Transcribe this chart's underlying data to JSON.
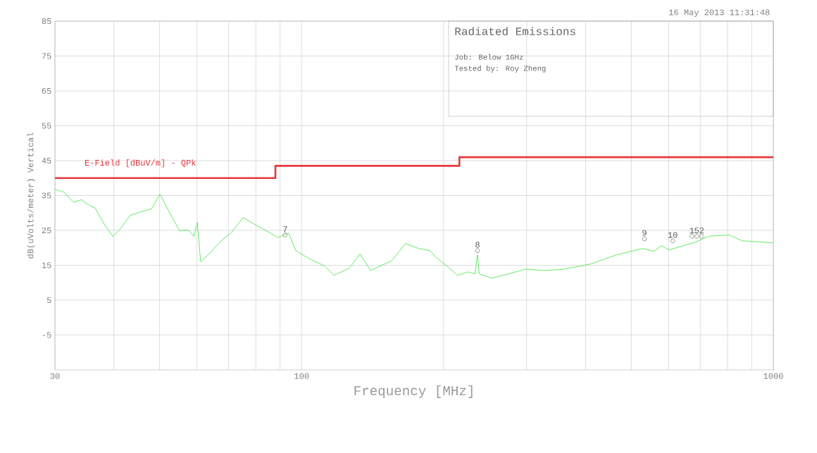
{
  "chart_data": {
    "type": "line",
    "title": "Radiated Emissions",
    "xlabel": "Frequency [MHz]",
    "ylabel": "dB(uVolts/meter) Vertical",
    "log": "x",
    "grid": true,
    "xlim": [
      30,
      1000
    ],
    "ylim": [
      -15,
      85
    ],
    "xticks": [
      30,
      {
        "value": 40,
        "label": null
      },
      {
        "value": 50,
        "label": null
      },
      {
        "value": 60,
        "label": null
      },
      {
        "value": 70,
        "label": null
      },
      {
        "value": 80,
        "label": null
      },
      {
        "value": 90,
        "label": null
      },
      100,
      {
        "value": 200,
        "label": null
      },
      {
        "value": 300,
        "label": null
      },
      {
        "value": 400,
        "label": null
      },
      {
        "value": 500,
        "label": null
      },
      {
        "value": 600,
        "label": null
      },
      {
        "value": 700,
        "label": null
      },
      {
        "value": 800,
        "label": null
      },
      {
        "value": 900,
        "label": null
      },
      1000
    ],
    "yticks": [
      85,
      75,
      65,
      55,
      45,
      35,
      25,
      15,
      5,
      -5
    ],
    "series": [
      {
        "name": "E-Field [dBuV/m] - QPk",
        "type": "step",
        "color": "#e8383d",
        "x": [
          30,
          88,
          216,
          1000
        ],
        "values": [
          40,
          43.5,
          46,
          46
        ]
      },
      {
        "color": "#3ce63c",
        "x": [
          30,
          31.3,
          32.9,
          34.1,
          35.3,
          36.5,
          38.2,
          39.8,
          41.2,
          43.3,
          45.6,
          48.1,
          50.1,
          52.4,
          55.1,
          57.6,
          59.1,
          60.1,
          61.1,
          63.9,
          67.8,
          70.9,
          75.2,
          79.1,
          84.7,
          89.2,
          92.3,
          93.9,
          97.2,
          104,
          112,
          117,
          126,
          133,
          140,
          149,
          155,
          166,
          177,
          187,
          193,
          204,
          214,
          226,
          233,
          236,
          238,
          253,
          274,
          299,
          327,
          362,
          411,
          466,
          529,
          558,
          579,
          601,
          683,
          729,
          805,
          860,
          918,
          997
        ],
        "values": [
          36.8,
          36.0,
          33.0,
          33.8,
          32.4,
          31.4,
          26.7,
          23.3,
          25.3,
          29.3,
          30.3,
          31.2,
          35.4,
          30.3,
          24.9,
          25.1,
          23.3,
          27.3,
          16.0,
          18.5,
          22.2,
          24.3,
          28.7,
          26.9,
          24.7,
          22.9,
          23.9,
          24.2,
          19.2,
          16.8,
          14.8,
          12.1,
          14.1,
          18.2,
          13.5,
          15.2,
          16.2,
          21.2,
          19.8,
          19.2,
          17.2,
          14.6,
          12.1,
          13.1,
          12.5,
          18.0,
          12.5,
          11.3,
          12.5,
          13.9,
          13.5,
          13.9,
          15.4,
          18.0,
          19.8,
          19.0,
          20.6,
          19.4,
          21.6,
          23.3,
          23.7,
          22.0,
          21.8,
          21.4
        ]
      },
      {
        "type": "scatter",
        "marker": "circle",
        "color": "#808080",
        "x": [
          92.3,
          236,
          533,
          612,
          672,
          688,
          705
        ],
        "values": [
          23.7,
          19.2,
          22.6,
          22.0,
          23.3,
          23.3,
          23.3
        ]
      }
    ],
    "annotations": [
      "16 May 2013   11:31:48",
      "Job: Below 1GHz",
      "Tested by: Roy Zheng",
      {
        "text": "7",
        "x": 92.3,
        "y": 23.7
      },
      {
        "text": "8",
        "x": 236,
        "y": 19.2
      },
      {
        "text": "9",
        "x": 533,
        "y": 22.6
      },
      {
        "text": "10",
        "x": 612,
        "y": 22.0
      },
      {
        "text": "1",
        "x": 672,
        "y": 23.3
      },
      {
        "text": "5",
        "x": 688,
        "y": 23.3
      },
      {
        "text": "2",
        "x": 705,
        "y": 23.3
      }
    ]
  }
}
